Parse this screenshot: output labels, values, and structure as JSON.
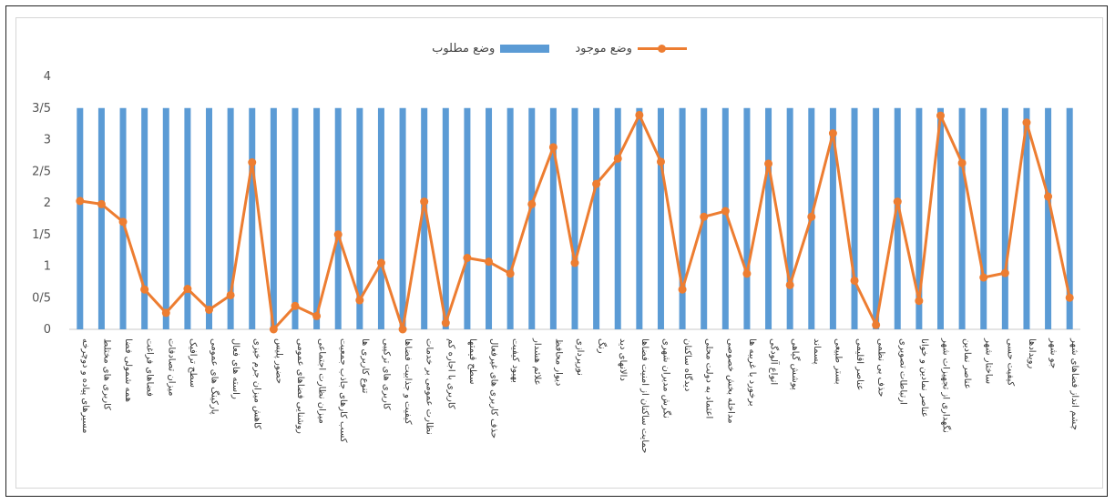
{
  "chart_data": {
    "type": "bar",
    "ylim": [
      0,
      4
    ],
    "yticks": [
      "0",
      "0/5",
      "1",
      "1/5",
      "2",
      "2/5",
      "3",
      "3/5",
      "4"
    ],
    "ytick_values": [
      0,
      0.5,
      1,
      1.5,
      2,
      2.5,
      3,
      3.5,
      4
    ],
    "grid": false,
    "legend_position": "top",
    "categories": [
      "مسیرهای پیاده و دوچرخه",
      "کاربری های مختلط",
      "همه شمولی فضا",
      "فضاهای فراغت",
      "میزان تصادفات",
      "سطح ترافیک",
      "پارکینگ های عمومی",
      "راسته های فعال",
      "کاهش میزان جرم خیزی",
      "حضور پلیس",
      "روشنایی فضاهای عمومی",
      "میزان نظارت اجتماعی",
      "کسب کارهای جاذب جمعیت",
      "تنوع کاربری ها",
      "کاربری های ترکیبی",
      "کیفیت و جذابیت فضاها",
      "نظارت عمومی بر خدمات",
      "کاربری با اجاره کم",
      "سطح قیمتها",
      "حذف کاربری های غیرفعال",
      "بهبود کیفیت",
      "علائم هشدار",
      "دیوار محافظ",
      "نورپردازی",
      "رنگ",
      "دالانهای دید",
      "حمایت ساکنان از امنیت فضاها",
      "نگرش مدیران شهری",
      "دیدگاه ساکنان",
      "اعتماد به دولت محلی",
      "مداخله بخش خصوصی",
      "برخورد با غریبه ها",
      "انواع آلودگی",
      "پوشش گیاهی",
      "پسماند",
      "بستر طبیعی",
      "عناصر اقلیمی",
      "حذف بی نظمی",
      "ارتباطات تصویری",
      "عناصر نمادین و خوانا",
      "نگهداری از تجهیزات شهر",
      "عناصر نمادین",
      "ساختار شهر",
      "کیفیت حسی",
      "رویدادها",
      "جو شهر",
      "چشم انداز فضاهای شهر"
    ],
    "series": [
      {
        "name": "وضع مطلوب",
        "type": "bar",
        "color": "#5b9bd5",
        "values": [
          3.5,
          3.5,
          3.5,
          3.5,
          3.5,
          3.5,
          3.5,
          3.5,
          3.5,
          3.5,
          3.5,
          3.5,
          3.5,
          3.5,
          3.5,
          3.5,
          3.5,
          3.5,
          3.5,
          3.5,
          3.5,
          3.5,
          3.5,
          3.5,
          3.5,
          3.5,
          3.5,
          3.5,
          3.5,
          3.5,
          3.5,
          3.5,
          3.5,
          3.5,
          3.5,
          3.5,
          3.5,
          3.5,
          3.5,
          3.5,
          3.5,
          3.5,
          3.5,
          3.5,
          3.5,
          3.5,
          3.5
        ]
      },
      {
        "name": "وضع موجود",
        "type": "line",
        "color": "#ed7d31",
        "values": [
          2.03,
          1.98,
          1.7,
          0.63,
          0.26,
          0.64,
          0.31,
          0.54,
          2.64,
          0.0,
          0.37,
          0.21,
          1.5,
          0.46,
          1.05,
          0.0,
          2.02,
          0.1,
          1.13,
          1.07,
          0.88,
          1.98,
          2.88,
          1.05,
          2.3,
          2.7,
          3.39,
          2.65,
          0.63,
          1.78,
          1.87,
          0.88,
          2.62,
          0.7,
          1.78,
          3.1,
          0.77,
          0.07,
          2.02,
          0.45,
          3.38,
          2.63,
          0.82,
          0.89,
          3.27,
          2.1,
          0.5
        ]
      }
    ]
  }
}
